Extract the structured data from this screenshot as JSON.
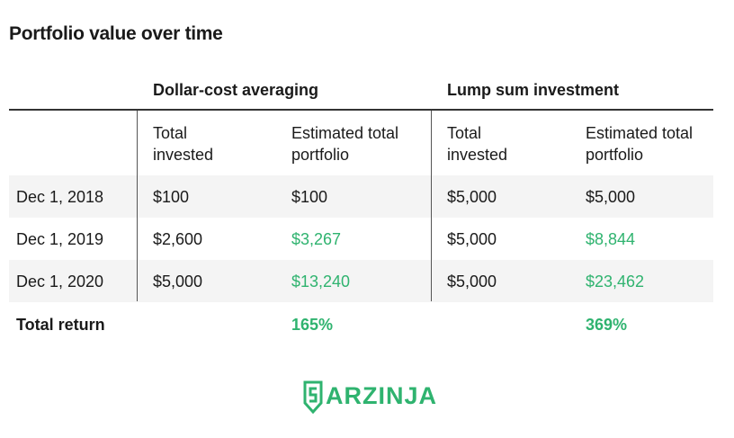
{
  "title": "Portfolio value over time",
  "table": {
    "groups": [
      "Dollar-cost averaging",
      "Lump sum investment"
    ],
    "columns": [
      "Total invested",
      "Estimated total portfolio",
      "Total invested",
      "Estimated total portfolio"
    ],
    "rows": [
      [
        "Dec 1, 2018",
        "$100",
        "$100",
        "$5,000",
        "$5,000"
      ],
      [
        "Dec 1, 2019",
        "$2,600",
        "$3,267",
        "$5,000",
        "$8,844"
      ],
      [
        "Dec 1, 2020",
        "$5,000",
        "$13,240",
        "$5,000",
        "$23,462"
      ]
    ],
    "total": {
      "label": "Total return",
      "values": [
        "165%",
        "369%"
      ]
    }
  },
  "logo": "ARZINJA"
}
